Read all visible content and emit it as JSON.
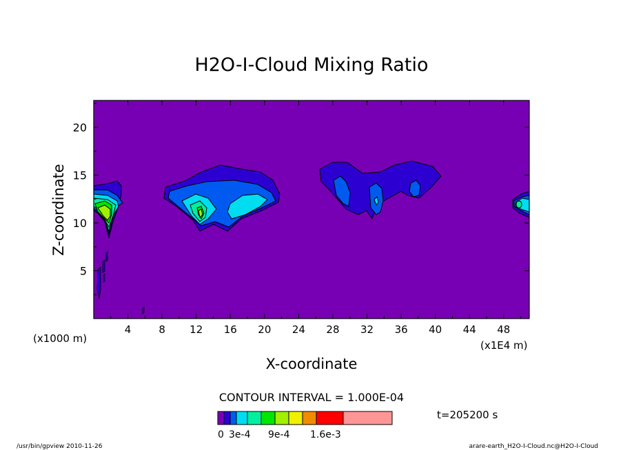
{
  "chart_data": {
    "type": "contour",
    "title": "H2O-I-Cloud Mixing Ratio",
    "xlabel": "X-coordinate",
    "ylabel": "Z-coordinate",
    "x_unit_label": "(x1E4 m)",
    "y_unit_label": "(x1000 m)",
    "x_ticks": [
      "4",
      "8",
      "12",
      "16",
      "20",
      "24",
      "28",
      "32",
      "36",
      "40",
      "44",
      "48"
    ],
    "y_ticks": [
      "5",
      "10",
      "15",
      "20"
    ],
    "xlim": [
      0,
      51
    ],
    "ylim": [
      0,
      22.8
    ],
    "contour_interval_text": "CONTOUR INTERVAL = 1.000E-04",
    "time_text": "t=205200 s",
    "colorbar_labels": [
      "0",
      "3e-4",
      "9e-4",
      "1.6e-3"
    ],
    "colorbar_colors": [
      "#7800b4",
      "#2d00d2",
      "#005af0",
      "#00dcf0",
      "#00f0a0",
      "#00e600",
      "#a0f000",
      "#f0f000",
      "#f08c00",
      "#ff0000",
      "#ff9696"
    ],
    "colorbar_levels": [
      0,
      0.0001,
      0.0002,
      0.0003,
      0.0004,
      0.0006,
      0.0009,
      0.0012,
      0.0014,
      0.0016,
      0.002
    ],
    "cloud_regions": [
      {
        "x_range": [
          0,
          3.2
        ],
        "z_range": [
          8.5,
          14.5
        ],
        "max": "1.2e-3"
      },
      {
        "x_range": [
          8,
          22
        ],
        "z_range": [
          9.5,
          16.2
        ],
        "max": "9e-4"
      },
      {
        "x_range": [
          26.5,
          40.5
        ],
        "z_range": [
          10.5,
          16.5
        ],
        "max": "3e-4"
      },
      {
        "x_range": [
          49,
          51
        ],
        "z_range": [
          10.9,
          13.2
        ],
        "max": "4e-4"
      }
    ]
  },
  "footer": {
    "left": "/usr/bin/gpview   2010-11-26",
    "right": "arare-earth_H2O-I-Cloud.nc@H2O-I-Cloud"
  }
}
